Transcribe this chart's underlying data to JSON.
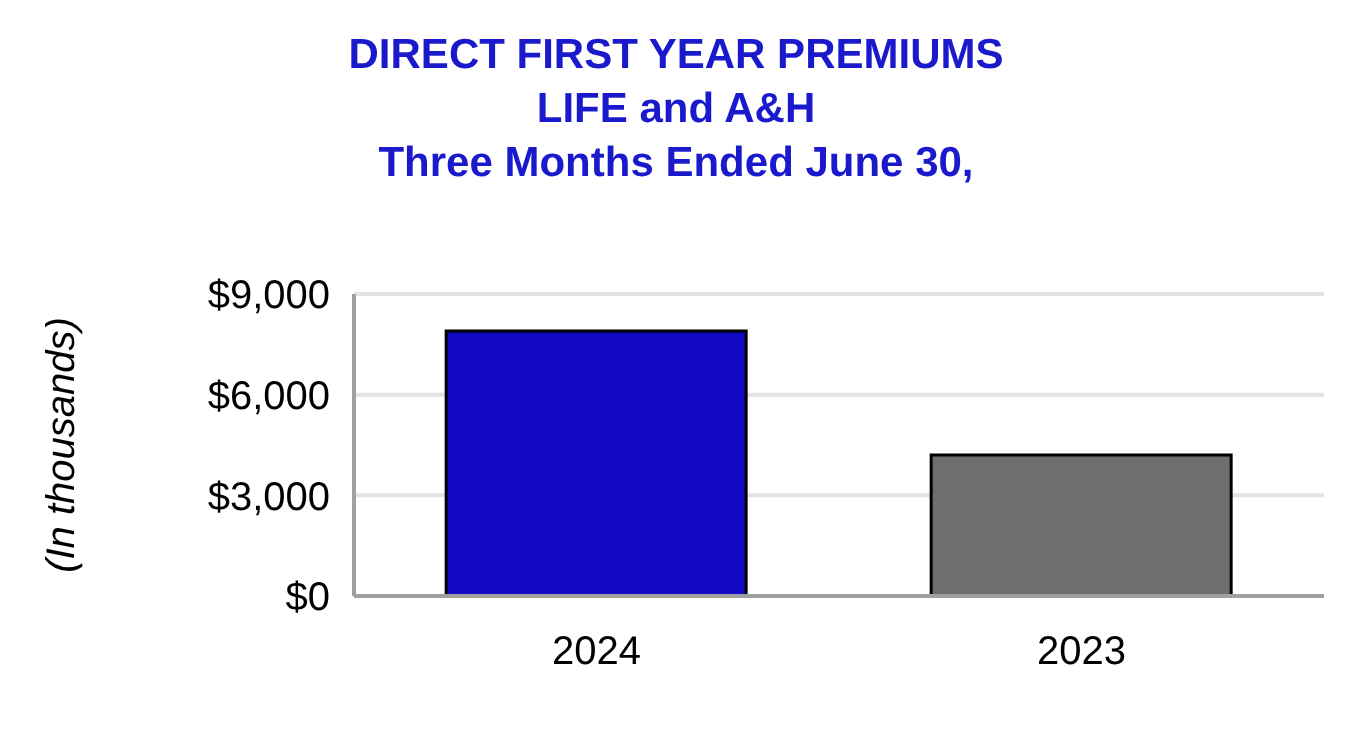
{
  "chart_data": {
    "type": "bar",
    "title": "DIRECT FIRST YEAR PREMIUMS\nLIFE and A&H\nThree Months Ended June 30,",
    "ylabel": "(In thousands)",
    "categories": [
      "2024",
      "2023"
    ],
    "values": [
      7900,
      4200
    ],
    "colors": [
      "#1207c4",
      "#6e6e6e"
    ],
    "ylim": [
      0,
      9000
    ],
    "yticks": [
      {
        "value": 0,
        "label": "$0"
      },
      {
        "value": 3000,
        "label": "$3,000"
      },
      {
        "value": 6000,
        "label": "$6,000"
      },
      {
        "value": 9000,
        "label": "$9,000"
      }
    ],
    "grid": "y",
    "legend": false
  }
}
